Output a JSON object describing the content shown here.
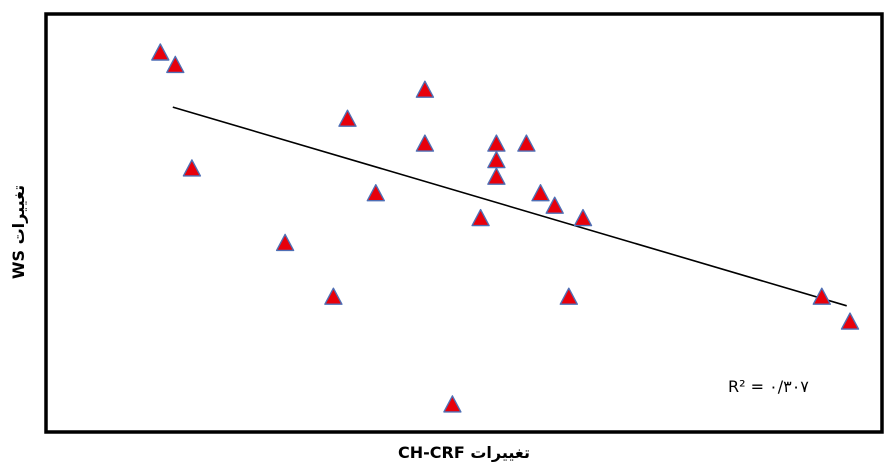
{
  "chart_data": {
    "type": "scatter",
    "xlabel": "تغییرات CH-CRF",
    "ylabel": "تغییرات WS",
    "annotation": "R² = ۰/۳۰۷",
    "grid": false,
    "legend": "none",
    "xlim": [
      0,
      100
    ],
    "ylim": [
      0,
      100
    ],
    "trendline": {
      "x": [
        15,
        96
      ],
      "y": [
        78,
        30
      ]
    },
    "points": [
      {
        "x": 13.5,
        "y": 91
      },
      {
        "x": 15.3,
        "y": 88
      },
      {
        "x": 17.3,
        "y": 63
      },
      {
        "x": 28.5,
        "y": 45
      },
      {
        "x": 34.3,
        "y": 32
      },
      {
        "x": 36.0,
        "y": 75
      },
      {
        "x": 39.4,
        "y": 57
      },
      {
        "x": 45.3,
        "y": 82
      },
      {
        "x": 45.3,
        "y": 69
      },
      {
        "x": 48.6,
        "y": 6
      },
      {
        "x": 52.0,
        "y": 51
      },
      {
        "x": 53.9,
        "y": 69
      },
      {
        "x": 53.9,
        "y": 65
      },
      {
        "x": 53.9,
        "y": 61
      },
      {
        "x": 57.5,
        "y": 69
      },
      {
        "x": 59.2,
        "y": 57
      },
      {
        "x": 60.9,
        "y": 54
      },
      {
        "x": 62.6,
        "y": 32
      },
      {
        "x": 64.3,
        "y": 51
      },
      {
        "x": 93.0,
        "y": 32
      },
      {
        "x": 96.4,
        "y": 26
      }
    ],
    "colors": {
      "marker_fill": "#e8000b",
      "marker_stroke": "#4f6fb5",
      "line": "#000000",
      "frame": "#000000"
    }
  }
}
